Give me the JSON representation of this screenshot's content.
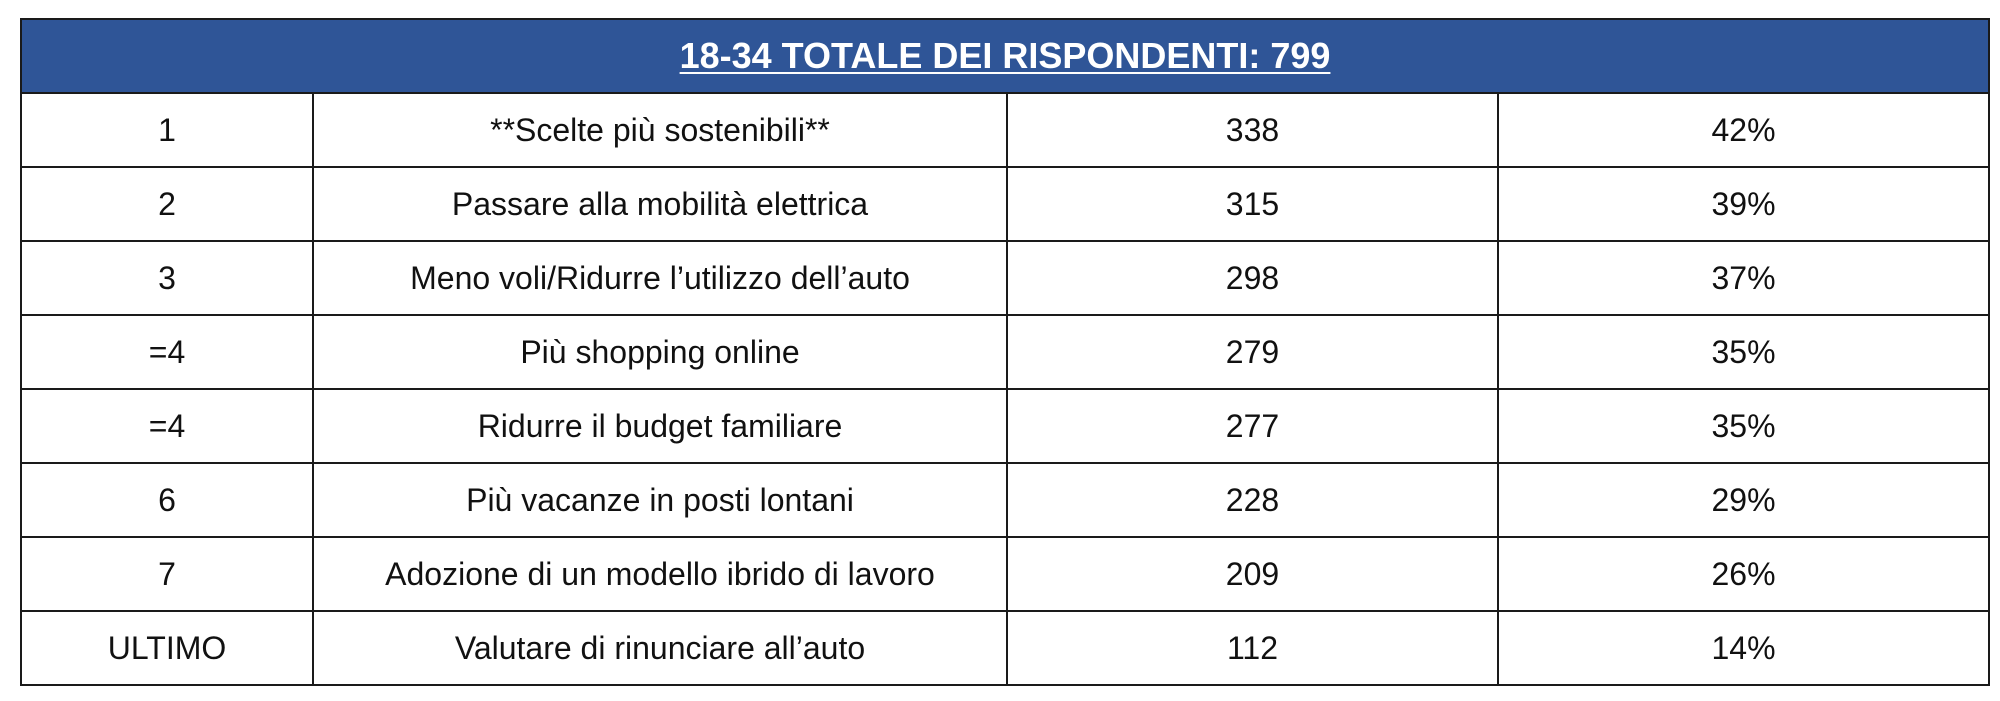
{
  "table": {
    "title": "18-34 TOTALE DEI RISPONDENTI: 799",
    "rows": [
      {
        "rank": "1",
        "label": "**Scelte più sostenibili**",
        "count": "338",
        "percent": "42%"
      },
      {
        "rank": "2",
        "label": "Passare alla mobilità elettrica",
        "count": "315",
        "percent": "39%"
      },
      {
        "rank": "3",
        "label": "Meno voli/Ridurre l’utilizzo dell’auto",
        "count": "298",
        "percent": "37%"
      },
      {
        "rank": "=4",
        "label": "Più shopping online",
        "count": "279",
        "percent": "35%"
      },
      {
        "rank": "=4",
        "label": "Ridurre il budget familiare",
        "count": "277",
        "percent": "35%"
      },
      {
        "rank": "6",
        "label": "Più vacanze in posti lontani",
        "count": "228",
        "percent": "29%"
      },
      {
        "rank": "7",
        "label": "Adozione di un modello ibrido di lavoro",
        "count": "209",
        "percent": "26%"
      },
      {
        "rank": "ULTIMO",
        "label": "Valutare di rinunciare all’auto",
        "count": "112",
        "percent": "14%"
      }
    ]
  },
  "colors": {
    "header_background": "#2f5597",
    "header_text": "#ffffff",
    "border": "#1a1a1a"
  }
}
